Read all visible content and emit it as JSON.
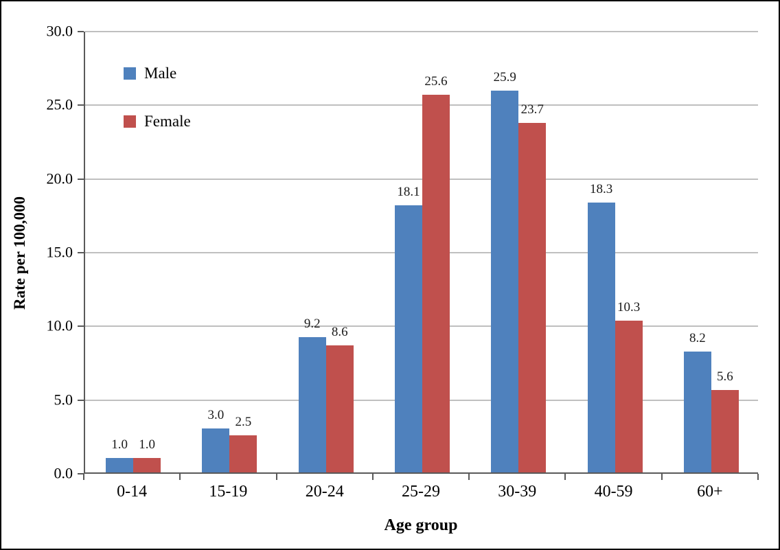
{
  "chart_data": {
    "type": "bar",
    "title": "",
    "xlabel": "Age group",
    "ylabel": "Rate per 100,000",
    "categories": [
      "0-14",
      "15-19",
      "20-24",
      "25-29",
      "30-39",
      "40-59",
      "60+"
    ],
    "series": [
      {
        "name": "Male",
        "color": "#4f81bd",
        "values": [
          1.0,
          3.0,
          9.2,
          18.1,
          25.9,
          18.3,
          8.2
        ],
        "labels": [
          "1.0",
          "3.0",
          "9.2",
          "18.1",
          "25.9",
          "18.3",
          "8.2"
        ]
      },
      {
        "name": "Female",
        "color": "#c0504d",
        "values": [
          1.0,
          2.5,
          8.6,
          25.6,
          23.7,
          10.3,
          5.6
        ],
        "labels": [
          "1.0",
          "2.5",
          "8.6",
          "25.6",
          "23.7",
          "10.3",
          "5.6"
        ]
      }
    ],
    "ylim": [
      0,
      30
    ],
    "ytick_step": 5,
    "ytick_labels": [
      "0.0",
      "5.0",
      "10.0",
      "15.0",
      "20.0",
      "25.0",
      "30.0"
    ],
    "grid": true,
    "legend_position": "top-left-inside",
    "data_labels": true
  }
}
